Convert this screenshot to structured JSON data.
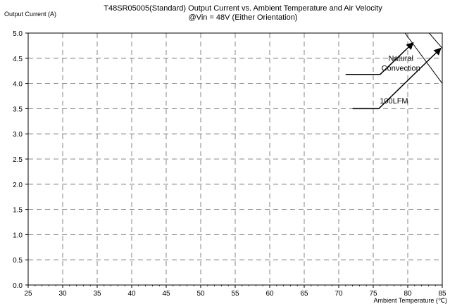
{
  "chart_data": {
    "type": "line",
    "title_line1": "T48SR05005(Standard)  Output Current vs. Ambient Temperature and Air Velocity",
    "title_line2": "@Vin = 48V (Either Orientation)",
    "ylabel": "Output Current (A)",
    "xlabel": "Ambient Temperature (℃)",
    "xlim": [
      25,
      85
    ],
    "ylim": [
      0,
      5.0
    ],
    "x_ticks": [
      25,
      30,
      35,
      40,
      45,
      50,
      55,
      60,
      65,
      70,
      75,
      80,
      85
    ],
    "x_tick_labels": [
      "25",
      "30",
      "35",
      "40",
      "45",
      "50",
      "55",
      "60",
      "65",
      "70",
      "75",
      "80",
      "85"
    ],
    "y_ticks": [
      0,
      0.5,
      1.0,
      1.5,
      2.0,
      2.5,
      3.0,
      3.5,
      4.0,
      4.5,
      5.0
    ],
    "y_tick_labels": [
      "0.0",
      "0.5",
      "1.0",
      "1.5",
      "2.0",
      "2.5",
      "3.0",
      "3.5",
      "4.0",
      "4.5",
      "5.0"
    ],
    "grid": true,
    "grid_style": "dashed",
    "series": [
      {
        "name": "Natural Convection",
        "x": [
          25,
          79.6,
          85
        ],
        "y": [
          5.0,
          5.0,
          4.0
        ]
      },
      {
        "name": "100LFM",
        "x": [
          25,
          83.1,
          85
        ],
        "y": [
          5.0,
          5.0,
          4.7
        ]
      }
    ],
    "annotations": [
      {
        "id": "natural-convection",
        "lines": [
          "Natural",
          "Convection"
        ],
        "text_at": [
          79,
          4.45
        ],
        "leader": [
          [
            71,
            4.18
          ],
          [
            76,
            4.18
          ],
          [
            80.8,
            4.81
          ]
        ]
      },
      {
        "id": "100lfm",
        "lines": [
          "100LFM"
        ],
        "text_at": [
          78,
          3.6
        ],
        "leader": [
          [
            72,
            3.5
          ],
          [
            75.8,
            3.5
          ],
          [
            84.8,
            4.7
          ]
        ]
      }
    ]
  }
}
